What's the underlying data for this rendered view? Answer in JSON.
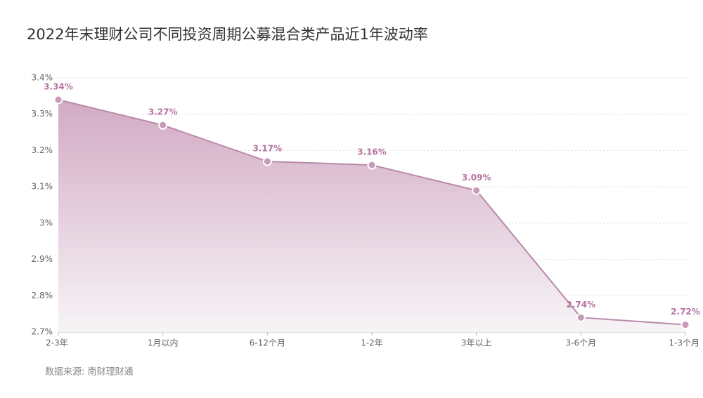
{
  "chart_data": {
    "type": "area",
    "title": "2022年末理财公司不同投资周期公募混合类产品近1年波动率",
    "source": "数据来源: 南财理财通",
    "categories": [
      "2-3年",
      "1月以内",
      "6-12个月",
      "1-2年",
      "3年以上",
      "3-6个月",
      "1-3个月"
    ],
    "values": [
      3.34,
      3.27,
      3.17,
      3.16,
      3.09,
      2.74,
      2.72
    ],
    "value_labels": [
      "3.34%",
      "3.27%",
      "3.17%",
      "3.16%",
      "3.09%",
      "2.74%",
      "2.72%"
    ],
    "color": "#b98aaa",
    "ylim": [
      2.7,
      3.4
    ],
    "yticks": [
      {
        "value": 2.7,
        "label": "2.7%"
      },
      {
        "value": 2.8,
        "label": "2.8%"
      },
      {
        "value": 2.9,
        "label": "2.9%"
      },
      {
        "value": 3,
        "label": "3%"
      },
      {
        "value": 3.1,
        "label": "3.1%"
      },
      {
        "value": 3.2,
        "label": "3.2%"
      },
      {
        "value": 3.3,
        "label": "3.3%"
      },
      {
        "value": 3.4,
        "label": "3.4%"
      }
    ],
    "grid": true
  }
}
